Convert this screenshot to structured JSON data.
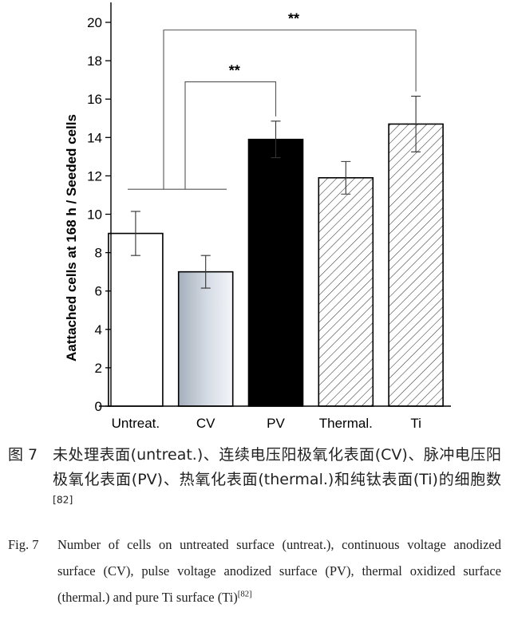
{
  "chart_data": {
    "type": "bar",
    "ylabel": "Aattached cells at 168 h / Seeded cells",
    "ylim": [
      0,
      20
    ],
    "yticks": [
      0,
      2,
      4,
      6,
      8,
      10,
      12,
      14,
      16,
      18,
      20
    ],
    "categories": [
      "Untreat.",
      "CV",
      "PV",
      "Thermal.",
      "Ti"
    ],
    "values": [
      9.0,
      7.0,
      13.9,
      11.9,
      14.7
    ],
    "errors": [
      1.15,
      0.85,
      0.95,
      0.85,
      1.45
    ],
    "bar_styles": [
      "white",
      "gray-gradient",
      "black",
      "hatched",
      "hatched"
    ],
    "significance": [
      {
        "label": "**",
        "level": 11.3,
        "to_category": "PV",
        "bracket_height": 16.9
      },
      {
        "label": "**",
        "level": 11.3,
        "to_category": "Ti",
        "bracket_height": 19.6
      }
    ]
  },
  "caption": {
    "cn_label": "图 7",
    "cn_text": "未处理表面(untreat.)、连续电压阳极氧化表面(CV)、脉冲电压阳极氧化表面(PV)、热氧化表面(thermal.)和纯钛表面(Ti)的细胞数",
    "en_label": "Fig. 7",
    "en_text": "Number of cells on untreated surface (untreat.), continuous voltage anodized surface (CV), pulse voltage anodized surface (PV), thermal oxidized surface (thermal.) and pure Ti surface (Ti)",
    "ref": "[82]"
  }
}
